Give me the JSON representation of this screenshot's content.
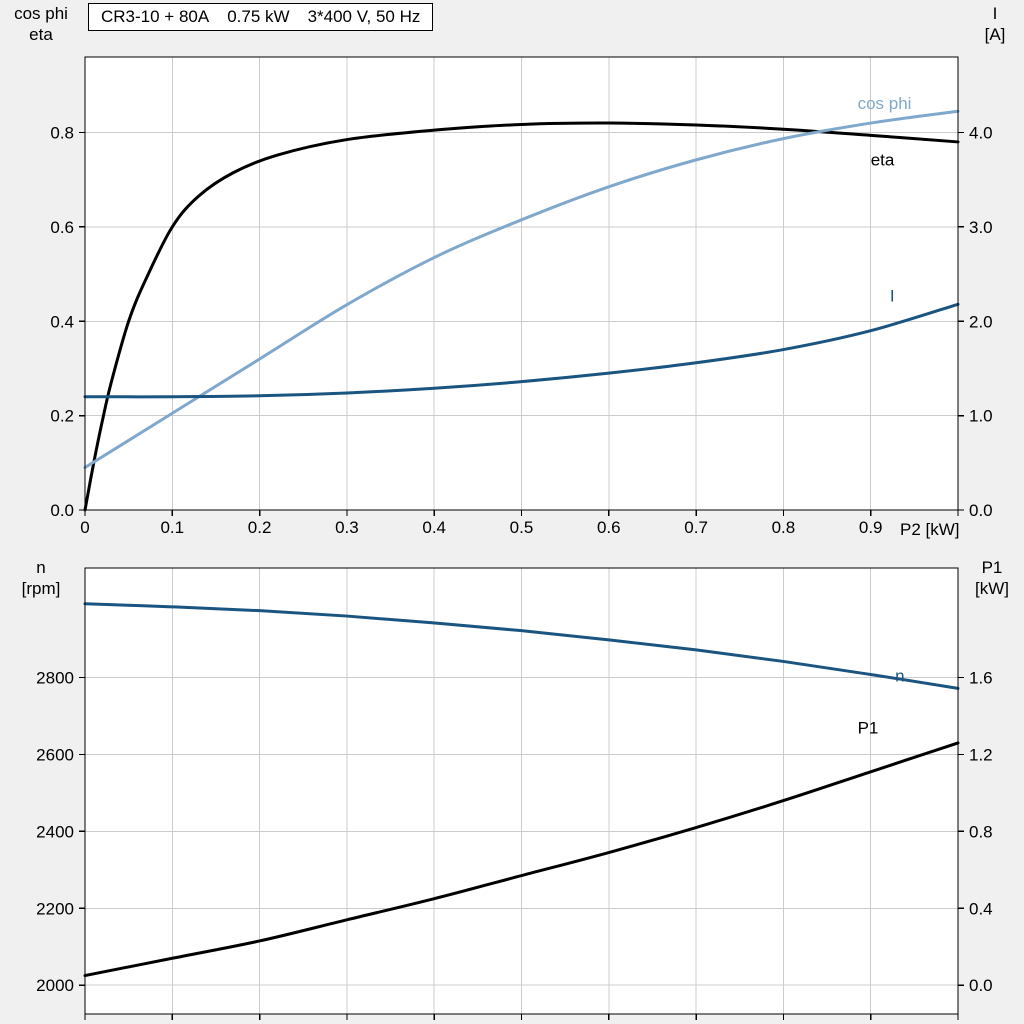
{
  "page": {
    "background": "#f0f0f0"
  },
  "colors": {
    "black": "#000000",
    "dark_blue": "#1a5480",
    "light_blue": "#7fa8cc",
    "grid": "#cccccc",
    "plot_bg": "#ffffff",
    "axis": "#000000"
  },
  "title_parts": [
    "CR3-10 + 80A",
    "0.75 kW",
    "3*400 V, 50 Hz"
  ],
  "corner_labels": {
    "top_left_line1": "cos phi",
    "top_left_line2": "eta",
    "top_right_line1": "I",
    "top_right_line2": "[A]",
    "x_axis_label": "P2 [kW]",
    "bottom_left_line1": "n",
    "bottom_left_line2": "[rpm]",
    "bottom_right_line1": "P1",
    "bottom_right_line2": "[kW]"
  },
  "chart_data": [
    {
      "type": "line",
      "title": "CR3-10 + 80A  0.75 kW  3*400 V, 50 Hz",
      "x_label": "P2 [kW]",
      "x_range": [
        0,
        1.0
      ],
      "x_ticks": [
        0,
        0.1,
        0.2,
        0.3,
        0.4,
        0.5,
        0.6,
        0.7,
        0.8,
        0.9
      ],
      "x_tick_labels": [
        "0",
        "0.1",
        "0.2",
        "0.3",
        "0.4",
        "0.5",
        "0.6",
        "0.7",
        "0.8",
        "0.9"
      ],
      "grid": true,
      "legend": "inline-labels",
      "left_axis": {
        "label": "cos phi / eta",
        "range": [
          0,
          0.96
        ],
        "ticks": [
          0,
          0.2,
          0.4,
          0.6,
          0.8
        ],
        "decimals": 1
      },
      "right_axis": {
        "label": "I [A]",
        "range": [
          0,
          4.8
        ],
        "ticks": [
          0,
          1.0,
          2.0,
          3.0,
          4.0
        ],
        "decimals": 1
      },
      "series": [
        {
          "name": "eta",
          "axis": "left",
          "color": "#000000",
          "width": 3,
          "x": [
            0,
            0.01,
            0.02,
            0.03,
            0.05,
            0.07,
            0.1,
            0.13,
            0.17,
            0.22,
            0.3,
            0.4,
            0.5,
            0.6,
            0.7,
            0.8,
            0.9,
            1.0
          ],
          "y": [
            0,
            0.1,
            0.19,
            0.27,
            0.4,
            0.49,
            0.6,
            0.665,
            0.715,
            0.752,
            0.785,
            0.805,
            0.817,
            0.82,
            0.816,
            0.807,
            0.794,
            0.78
          ],
          "label": "eta",
          "label_at": [
            0.9,
            0.73
          ]
        },
        {
          "name": "cos phi",
          "axis": "left",
          "color": "#7fa8cc",
          "width": 3,
          "x": [
            0,
            0.1,
            0.2,
            0.3,
            0.4,
            0.5,
            0.6,
            0.7,
            0.8,
            0.9,
            1.0
          ],
          "y": [
            0.09,
            0.205,
            0.32,
            0.435,
            0.535,
            0.615,
            0.685,
            0.742,
            0.787,
            0.82,
            0.845
          ],
          "label": "cos phi",
          "label_at": [
            0.885,
            0.85
          ]
        },
        {
          "name": "I",
          "axis": "right",
          "color": "#1a5480",
          "width": 3,
          "x": [
            0,
            0.1,
            0.2,
            0.3,
            0.4,
            0.5,
            0.6,
            0.7,
            0.8,
            0.9,
            1.0
          ],
          "y": [
            1.2,
            1.2,
            1.21,
            1.24,
            1.29,
            1.36,
            1.45,
            1.56,
            1.7,
            1.9,
            2.18
          ],
          "label": "I",
          "label_at": [
            0.922,
            2.21
          ]
        }
      ]
    },
    {
      "type": "line",
      "title": "",
      "x_label": "",
      "x_range": [
        0,
        1.0
      ],
      "x_ticks": [
        0,
        0.1,
        0.2,
        0.3,
        0.4,
        0.5,
        0.6,
        0.7,
        0.8,
        0.9
      ],
      "x_tick_labels": [],
      "grid": true,
      "legend": "inline-labels",
      "left_axis": {
        "label": "n [rpm]",
        "range": [
          1925,
          3085
        ],
        "ticks": [
          2000,
          2200,
          2400,
          2600,
          2800
        ],
        "decimals": 0
      },
      "right_axis": {
        "label": "P1 [kW]",
        "range": [
          -0.15,
          2.17
        ],
        "ticks": [
          0,
          0.4,
          0.8,
          1.2,
          1.6
        ],
        "decimals": 1
      },
      "series": [
        {
          "name": "n",
          "axis": "left",
          "color": "#1a5480",
          "width": 3,
          "x": [
            0,
            0.1,
            0.2,
            0.3,
            0.4,
            0.5,
            0.6,
            0.7,
            0.8,
            0.9,
            1.0
          ],
          "y": [
            2992,
            2984,
            2974,
            2960,
            2942,
            2922,
            2898,
            2872,
            2842,
            2808,
            2772
          ],
          "label": "n",
          "label_at": [
            0.928,
            2790
          ]
        },
        {
          "name": "P1",
          "axis": "right",
          "color": "#000000",
          "width": 3,
          "x": [
            0,
            0.1,
            0.2,
            0.3,
            0.4,
            0.5,
            0.6,
            0.7,
            0.8,
            0.9,
            1.0
          ],
          "y": [
            0.05,
            0.14,
            0.23,
            0.34,
            0.45,
            0.57,
            0.69,
            0.82,
            0.96,
            1.11,
            1.26
          ],
          "label": "P1",
          "label_at": [
            0.885,
            1.31
          ]
        }
      ]
    }
  ]
}
